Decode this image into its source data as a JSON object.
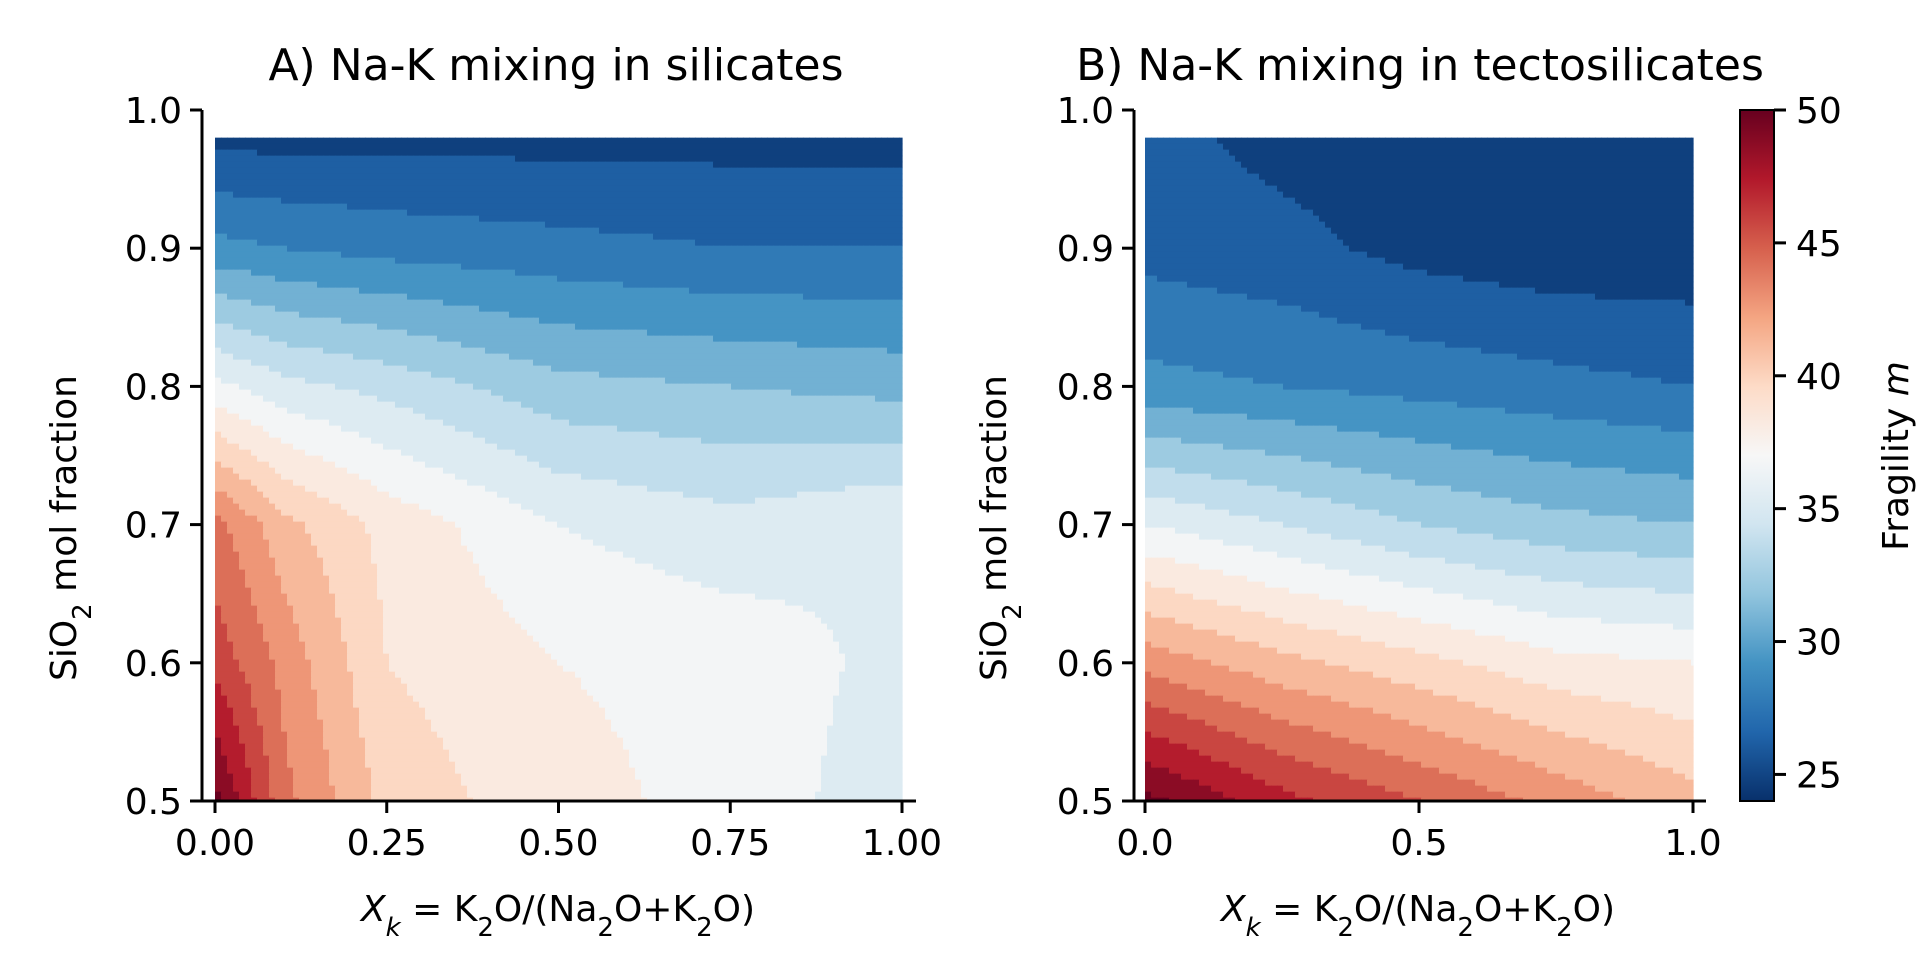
{
  "chart_data": [
    {
      "type": "contourf",
      "title": "A) Na-K mixing in silicates",
      "xlabel": "Xk = K2O/(Na2O+K2O)",
      "ylabel": "SiO2 mol fraction",
      "xlim": [
        0.0,
        1.0
      ],
      "ylim": [
        0.5,
        1.0
      ],
      "data_extent": {
        "x": [
          0.0,
          1.0
        ],
        "y": [
          0.5,
          0.98
        ]
      },
      "x_ticks": [
        0.0,
        0.25,
        0.5,
        0.75,
        1.0
      ],
      "x_tick_labels": [
        "0.00",
        "0.25",
        "0.50",
        "0.75",
        "1.00"
      ],
      "y_ticks": [
        0.5,
        0.6,
        0.7,
        0.8,
        0.9,
        1.0
      ],
      "y_tick_labels": [
        "0.5",
        "0.6",
        "0.7",
        "0.8",
        "0.9",
        "1.0"
      ],
      "grid": false,
      "field": {
        "x": [
          0.0,
          0.1,
          0.25,
          0.5,
          0.75,
          1.0
        ],
        "y": [
          0.5,
          0.6,
          0.7,
          0.8,
          0.9,
          0.98
        ],
        "z": [
          [
            50,
            44,
            40,
            38,
            37,
            35
          ],
          [
            46,
            43,
            39,
            37.5,
            37,
            35.5
          ],
          [
            44,
            41,
            38.5,
            36,
            35,
            36
          ],
          [
            36.5,
            35,
            34,
            32,
            31.5,
            31
          ],
          [
            29,
            28.5,
            28,
            27.5,
            27,
            27
          ],
          [
            25,
            25,
            25,
            25,
            25,
            25
          ]
        ]
      }
    },
    {
      "type": "contourf",
      "title": "B) Na-K mixing in tectosilicates",
      "xlabel": "Xk = K2O/(Na2O+K2O)",
      "ylabel": "SiO2 mol fraction",
      "xlim": [
        0.0,
        1.0
      ],
      "ylim": [
        0.5,
        1.0
      ],
      "data_extent": {
        "x": [
          0.0,
          1.0
        ],
        "y": [
          0.5,
          0.98
        ]
      },
      "x_ticks": [
        0.0,
        0.5,
        1.0
      ],
      "x_tick_labels": [
        "0.0",
        "0.5",
        "1.0"
      ],
      "y_ticks": [
        0.5,
        0.6,
        0.7,
        0.8,
        0.9,
        1.0
      ],
      "y_tick_labels": [
        "0.5",
        "0.6",
        "0.7",
        "0.8",
        "0.9",
        "1.0"
      ],
      "grid": false,
      "field": {
        "x": [
          0.0,
          0.25,
          0.5,
          0.75,
          1.0
        ],
        "y": [
          0.5,
          0.6,
          0.7,
          0.8,
          0.9,
          0.98
        ],
        "z": [
          [
            50,
            47,
            45,
            43,
            41
          ],
          [
            43,
            41,
            39.5,
            38,
            37.5
          ],
          [
            36,
            34.5,
            33,
            32,
            31.5
          ],
          [
            29,
            28.5,
            28,
            27.5,
            27
          ],
          [
            26.5,
            26,
            25,
            24.5,
            24.5
          ],
          [
            26,
            25,
            24.5,
            24.5,
            24.5
          ]
        ]
      }
    }
  ],
  "colorbar": {
    "label": "Fragility m",
    "range": [
      24.0,
      50.0
    ],
    "ticks": [
      25,
      30,
      35,
      40,
      45,
      50
    ],
    "tick_labels": [
      "25",
      "30",
      "35",
      "40",
      "45",
      "50"
    ],
    "colormap": "RdBu_r",
    "colors": [
      "#08306b",
      "#2166ac",
      "#4393c3",
      "#92c5de",
      "#d1e5f0",
      "#f7f7f7",
      "#fddbc7",
      "#f4a582",
      "#d6604d",
      "#b2182b",
      "#67001f"
    ]
  }
}
